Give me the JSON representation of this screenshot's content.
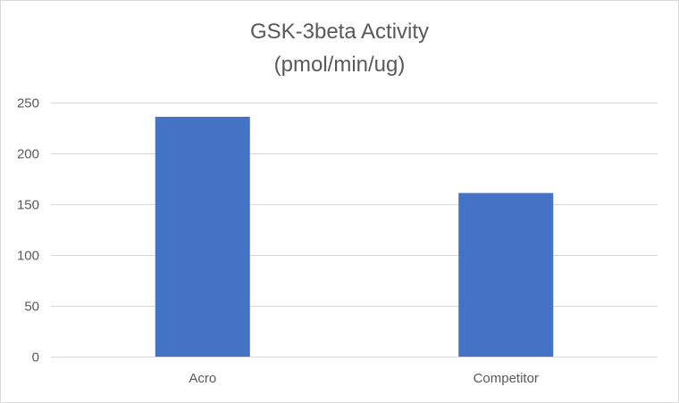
{
  "chart_data": {
    "type": "bar",
    "title": "GSK-3beta Activity",
    "subtitle": "(pmol/min/ug)",
    "categories": [
      "Acro",
      "Competitor"
    ],
    "values": [
      236,
      161
    ],
    "ylim": [
      0,
      250
    ],
    "yticks": [
      0,
      50,
      100,
      150,
      200,
      250
    ],
    "xlabel": "",
    "ylabel": "",
    "grid": true,
    "legend": "none",
    "bar_color": "#4472c4",
    "grid_color": "#d9d9d9"
  }
}
